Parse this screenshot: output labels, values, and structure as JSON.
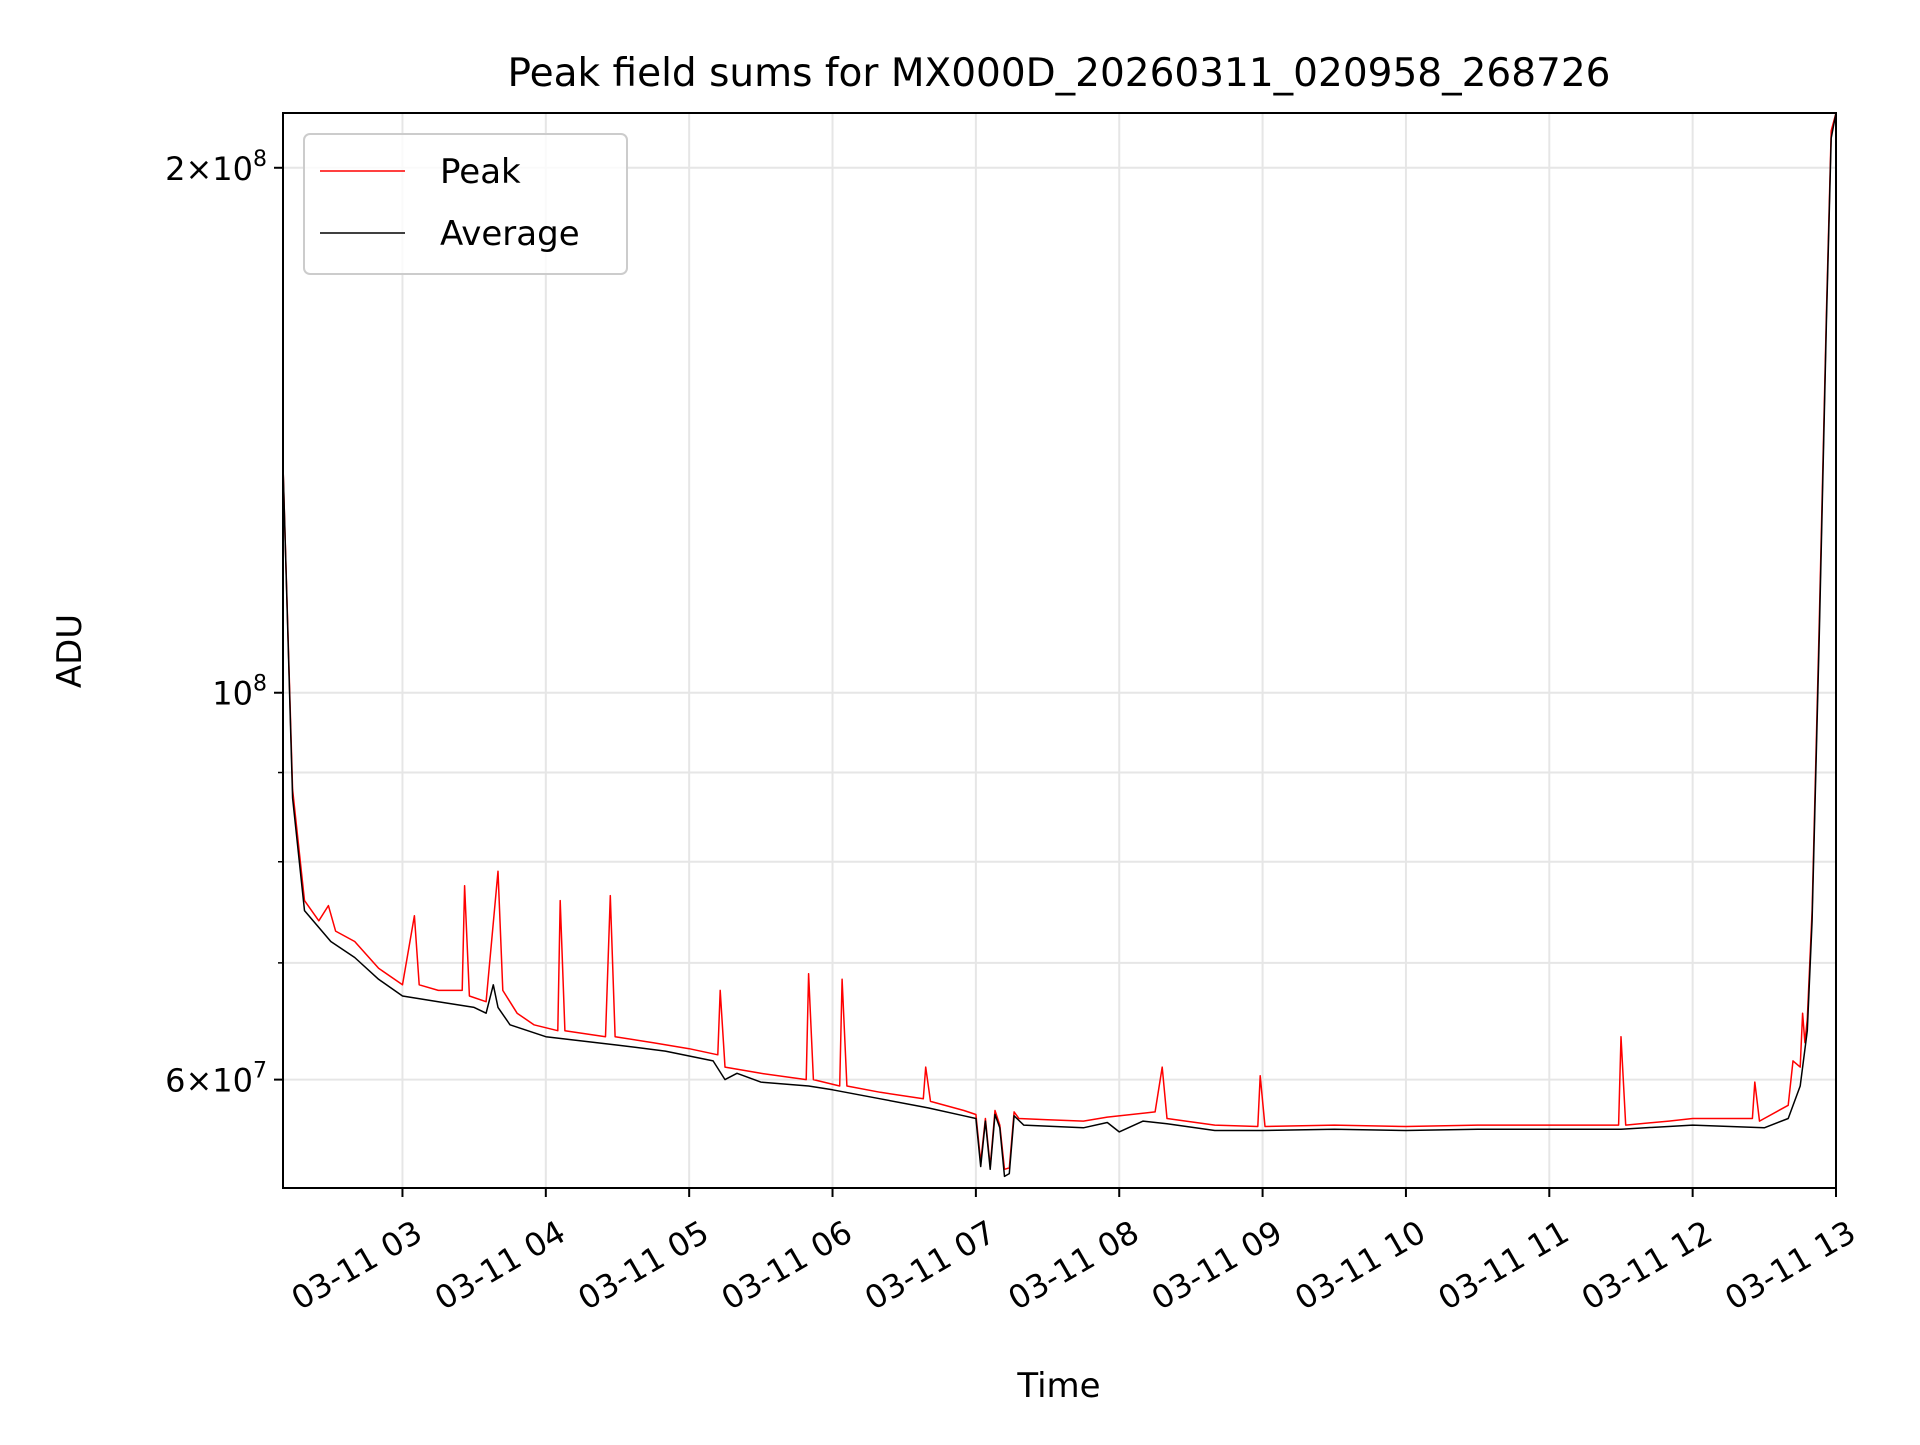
{
  "chart_data": {
    "type": "line",
    "title": "Peak field sums for MX000D_20260311_020958_268726",
    "xlabel": "Time",
    "ylabel": "ADU",
    "yscale": "log",
    "xlim": [
      "2026-03-11 02:10",
      "2026-03-11 13:00"
    ],
    "ylim": [
      52000000,
      215000000
    ],
    "x_tick_labels": [
      "03-11 03",
      "03-11 04",
      "03-11 05",
      "03-11 06",
      "03-11 07",
      "03-11 08",
      "03-11 09",
      "03-11 10",
      "03-11 11",
      "03-11 12",
      "03-11 13"
    ],
    "x_tick_times": [
      "2026-03-11 03:00",
      "2026-03-11 04:00",
      "2026-03-11 05:00",
      "2026-03-11 06:00",
      "2026-03-11 07:00",
      "2026-03-11 08:00",
      "2026-03-11 09:00",
      "2026-03-11 10:00",
      "2026-03-11 11:00",
      "2026-03-11 12:00",
      "2026-03-11 13:00"
    ],
    "y_ticks": [
      {
        "value": 60000000,
        "mantissa": "6",
        "exponent": "7"
      },
      {
        "value": 100000000,
        "mantissa": "",
        "exponent": "8"
      },
      {
        "value": 200000000,
        "mantissa": "2",
        "exponent": "8"
      }
    ],
    "y_minor_ticks": [
      70000000,
      80000000,
      90000000
    ],
    "grid": true,
    "legend_position": "upper-left",
    "series": [
      {
        "name": "Peak",
        "color": "#ff0000",
        "points": [
          [
            "2026-03-11 02:10",
            135000000
          ],
          [
            "2026-03-11 02:14",
            88000000
          ],
          [
            "2026-03-11 02:19",
            76000000
          ],
          [
            "2026-03-11 02:25",
            74000000
          ],
          [
            "2026-03-11 02:29",
            75500000
          ],
          [
            "2026-03-11 02:32",
            73000000
          ],
          [
            "2026-03-11 02:40",
            72000000
          ],
          [
            "2026-03-11 02:50",
            69500000
          ],
          [
            "2026-03-11 03:00",
            68000000
          ],
          [
            "2026-03-11 03:05",
            74500000
          ],
          [
            "2026-03-11 03:07",
            68000000
          ],
          [
            "2026-03-11 03:15",
            67500000
          ],
          [
            "2026-03-11 03:25",
            67500000
          ],
          [
            "2026-03-11 03:26",
            77500000
          ],
          [
            "2026-03-11 03:28",
            67000000
          ],
          [
            "2026-03-11 03:35",
            66500000
          ],
          [
            "2026-03-11 03:40",
            79000000
          ],
          [
            "2026-03-11 03:42",
            67500000
          ],
          [
            "2026-03-11 03:48",
            65500000
          ],
          [
            "2026-03-11 03:55",
            64500000
          ],
          [
            "2026-03-11 04:05",
            64000000
          ],
          [
            "2026-03-11 04:06",
            76000000
          ],
          [
            "2026-03-11 04:08",
            64000000
          ],
          [
            "2026-03-11 04:25",
            63500000
          ],
          [
            "2026-03-11 04:27",
            76500000
          ],
          [
            "2026-03-11 04:29",
            63500000
          ],
          [
            "2026-03-11 04:45",
            63000000
          ],
          [
            "2026-03-11 05:00",
            62500000
          ],
          [
            "2026-03-11 05:12",
            62000000
          ],
          [
            "2026-03-11 05:13",
            67500000
          ],
          [
            "2026-03-11 05:15",
            61000000
          ],
          [
            "2026-03-11 05:30",
            60500000
          ],
          [
            "2026-03-11 05:49",
            60000000
          ],
          [
            "2026-03-11 05:50",
            69000000
          ],
          [
            "2026-03-11 05:52",
            60000000
          ],
          [
            "2026-03-11 06:03",
            59500000
          ],
          [
            "2026-03-11 06:04",
            68500000
          ],
          [
            "2026-03-11 06:06",
            59500000
          ],
          [
            "2026-03-11 06:20",
            59000000
          ],
          [
            "2026-03-11 06:38",
            58500000
          ],
          [
            "2026-03-11 06:39",
            61000000
          ],
          [
            "2026-03-11 06:41",
            58300000
          ],
          [
            "2026-03-11 06:55",
            57600000
          ],
          [
            "2026-03-11 07:00",
            57300000
          ],
          [
            "2026-03-11 07:02",
            53800000
          ],
          [
            "2026-03-11 07:04",
            57000000
          ],
          [
            "2026-03-11 07:06",
            53500000
          ],
          [
            "2026-03-11 07:08",
            57600000
          ],
          [
            "2026-03-11 07:10",
            56500000
          ],
          [
            "2026-03-11 07:12",
            53300000
          ],
          [
            "2026-03-11 07:14",
            53400000
          ],
          [
            "2026-03-11 07:16",
            57500000
          ],
          [
            "2026-03-11 07:18",
            57000000
          ],
          [
            "2026-03-11 07:30",
            56900000
          ],
          [
            "2026-03-11 07:45",
            56800000
          ],
          [
            "2026-03-11 07:55",
            57100000
          ],
          [
            "2026-03-11 08:15",
            57500000
          ],
          [
            "2026-03-11 08:18",
            61000000
          ],
          [
            "2026-03-11 08:20",
            57000000
          ],
          [
            "2026-03-11 08:40",
            56500000
          ],
          [
            "2026-03-11 08:58",
            56400000
          ],
          [
            "2026-03-11 08:59",
            60300000
          ],
          [
            "2026-03-11 09:01",
            56400000
          ],
          [
            "2026-03-11 09:30",
            56500000
          ],
          [
            "2026-03-11 10:00",
            56400000
          ],
          [
            "2026-03-11 10:30",
            56500000
          ],
          [
            "2026-03-11 11:00",
            56500000
          ],
          [
            "2026-03-11 11:29",
            56500000
          ],
          [
            "2026-03-11 11:30",
            63500000
          ],
          [
            "2026-03-11 11:32",
            56500000
          ],
          [
            "2026-03-11 11:50",
            56800000
          ],
          [
            "2026-03-11 12:00",
            57000000
          ],
          [
            "2026-03-11 12:25",
            57000000
          ],
          [
            "2026-03-11 12:26",
            59800000
          ],
          [
            "2026-03-11 12:28",
            56800000
          ],
          [
            "2026-03-11 12:40",
            58000000
          ],
          [
            "2026-03-11 12:42",
            61500000
          ],
          [
            "2026-03-11 12:45",
            61000000
          ],
          [
            "2026-03-11 12:46",
            65500000
          ],
          [
            "2026-03-11 12:47",
            63000000
          ],
          [
            "2026-03-11 12:48",
            65000000
          ],
          [
            "2026-03-11 12:50",
            75000000
          ],
          [
            "2026-03-11 12:53",
            110000000
          ],
          [
            "2026-03-11 12:56",
            165000000
          ],
          [
            "2026-03-11 12:58",
            210000000
          ],
          [
            "2026-03-11 13:00",
            215000000
          ]
        ]
      },
      {
        "name": "Average",
        "color": "#000000",
        "points": [
          [
            "2026-03-11 02:10",
            135000000
          ],
          [
            "2026-03-11 02:14",
            87000000
          ],
          [
            "2026-03-11 02:19",
            75000000
          ],
          [
            "2026-03-11 02:30",
            72000000
          ],
          [
            "2026-03-11 02:40",
            70500000
          ],
          [
            "2026-03-11 02:50",
            68500000
          ],
          [
            "2026-03-11 03:00",
            67000000
          ],
          [
            "2026-03-11 03:15",
            66500000
          ],
          [
            "2026-03-11 03:30",
            66000000
          ],
          [
            "2026-03-11 03:35",
            65500000
          ],
          [
            "2026-03-11 03:38",
            68000000
          ],
          [
            "2026-03-11 03:40",
            66000000
          ],
          [
            "2026-03-11 03:45",
            64500000
          ],
          [
            "2026-03-11 04:00",
            63500000
          ],
          [
            "2026-03-11 04:30",
            62800000
          ],
          [
            "2026-03-11 04:50",
            62300000
          ],
          [
            "2026-03-11 05:10",
            61500000
          ],
          [
            "2026-03-11 05:15",
            60000000
          ],
          [
            "2026-03-11 05:20",
            60500000
          ],
          [
            "2026-03-11 05:30",
            59800000
          ],
          [
            "2026-03-11 05:50",
            59500000
          ],
          [
            "2026-03-11 06:00",
            59200000
          ],
          [
            "2026-03-11 06:20",
            58500000
          ],
          [
            "2026-03-11 06:40",
            57800000
          ],
          [
            "2026-03-11 06:55",
            57200000
          ],
          [
            "2026-03-11 07:00",
            57000000
          ],
          [
            "2026-03-11 07:02",
            53500000
          ],
          [
            "2026-03-11 07:04",
            56800000
          ],
          [
            "2026-03-11 07:06",
            53300000
          ],
          [
            "2026-03-11 07:08",
            57300000
          ],
          [
            "2026-03-11 07:10",
            56300000
          ],
          [
            "2026-03-11 07:12",
            52800000
          ],
          [
            "2026-03-11 07:14",
            53000000
          ],
          [
            "2026-03-11 07:16",
            57200000
          ],
          [
            "2026-03-11 07:20",
            56500000
          ],
          [
            "2026-03-11 07:45",
            56300000
          ],
          [
            "2026-03-11 07:55",
            56700000
          ],
          [
            "2026-03-11 08:00",
            56000000
          ],
          [
            "2026-03-11 08:10",
            56800000
          ],
          [
            "2026-03-11 08:20",
            56600000
          ],
          [
            "2026-03-11 08:40",
            56100000
          ],
          [
            "2026-03-11 09:00",
            56100000
          ],
          [
            "2026-03-11 09:30",
            56200000
          ],
          [
            "2026-03-11 10:00",
            56100000
          ],
          [
            "2026-03-11 10:30",
            56200000
          ],
          [
            "2026-03-11 11:00",
            56200000
          ],
          [
            "2026-03-11 11:30",
            56200000
          ],
          [
            "2026-03-11 12:00",
            56500000
          ],
          [
            "2026-03-11 12:30",
            56300000
          ],
          [
            "2026-03-11 12:40",
            57000000
          ],
          [
            "2026-03-11 12:45",
            59500000
          ],
          [
            "2026-03-11 12:48",
            64000000
          ],
          [
            "2026-03-11 12:50",
            74000000
          ],
          [
            "2026-03-11 12:53",
            108000000
          ],
          [
            "2026-03-11 12:56",
            163000000
          ],
          [
            "2026-03-11 12:58",
            208000000
          ],
          [
            "2026-03-11 13:00",
            215000000
          ]
        ]
      }
    ]
  }
}
